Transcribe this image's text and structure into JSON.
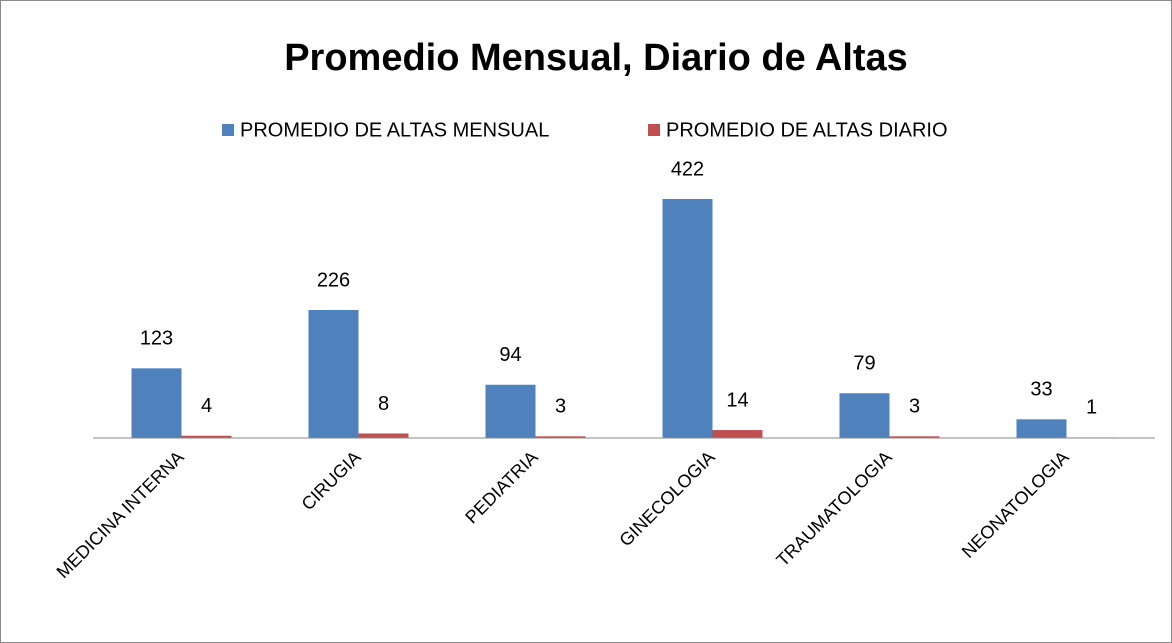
{
  "chart_data": {
    "type": "bar",
    "title": "Promedio Mensual, Diario de Altas",
    "categories": [
      "MEDICINA INTERNA",
      "CIRUGIA",
      "PEDIATRIA",
      "GINECOLOGIA",
      "TRAUMATOLOGIA",
      "NEONATOLOGIA"
    ],
    "series": [
      {
        "name": "PROMEDIO DE ALTAS MENSUAL",
        "color": "#4f81bd",
        "values": [
          123,
          226,
          94,
          422,
          79,
          33
        ]
      },
      {
        "name": "PROMEDIO DE ALTAS DIARIO",
        "color": "#c0504d",
        "values": [
          4,
          8,
          3,
          14,
          3,
          1
        ]
      }
    ],
    "legend": "top"
  }
}
